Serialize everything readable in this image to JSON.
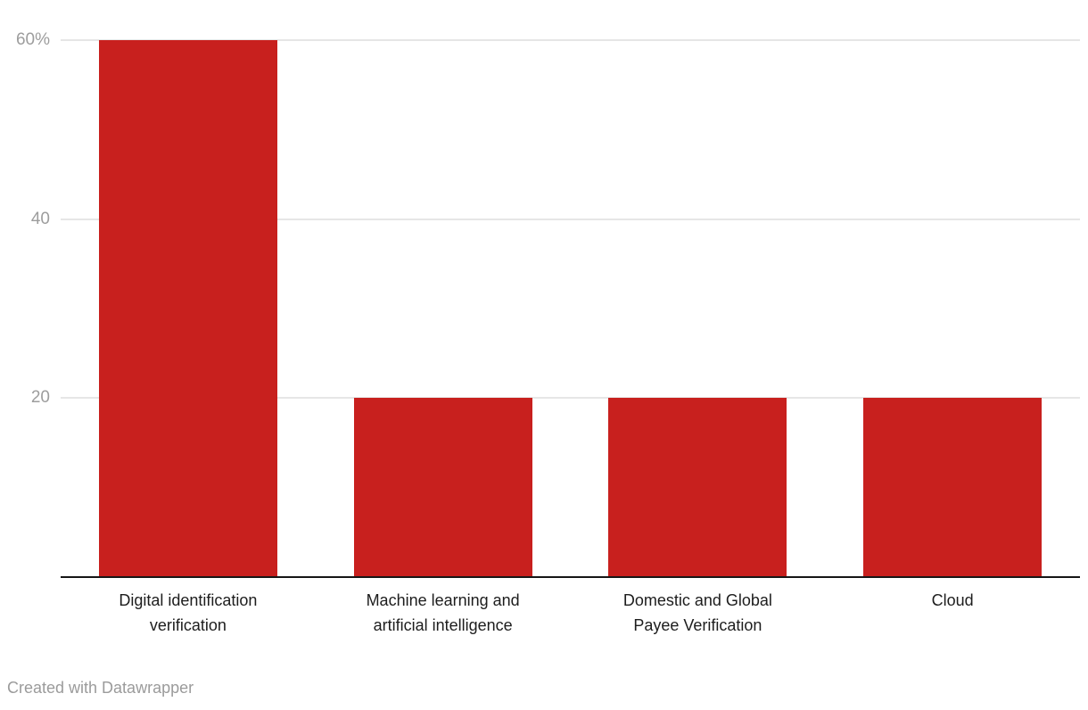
{
  "chart_data": {
    "type": "bar",
    "categories": [
      "Digital identification verification",
      "Machine learning and artificial intelligence",
      "Domestic and Global Payee Verification",
      "Cloud"
    ],
    "category_lines": [
      [
        "Digital identification",
        "verification"
      ],
      [
        "Machine learning and",
        "artificial intelligence"
      ],
      [
        "Domestic and Global",
        "Payee Verification"
      ],
      [
        "Cloud"
      ]
    ],
    "values": [
      60,
      20,
      20,
      20
    ],
    "unit": "%",
    "yticks": [
      {
        "value": 60,
        "label": "60%"
      },
      {
        "value": 40,
        "label": "40"
      },
      {
        "value": 20,
        "label": "20"
      }
    ],
    "ylim": [
      0,
      60
    ],
    "grid": true,
    "legend": "none",
    "bar_color": "#c8201e"
  },
  "colors": {
    "bar": "#c8201e",
    "grid": "#e6e6e6",
    "axis_line": "#161616",
    "tick_label": "#9d9d9d",
    "category_label": "#1d1d1d",
    "footer_text": "#9b9b9b",
    "background": "#ffffff"
  },
  "footer": {
    "credit": "Created with Datawrapper"
  }
}
